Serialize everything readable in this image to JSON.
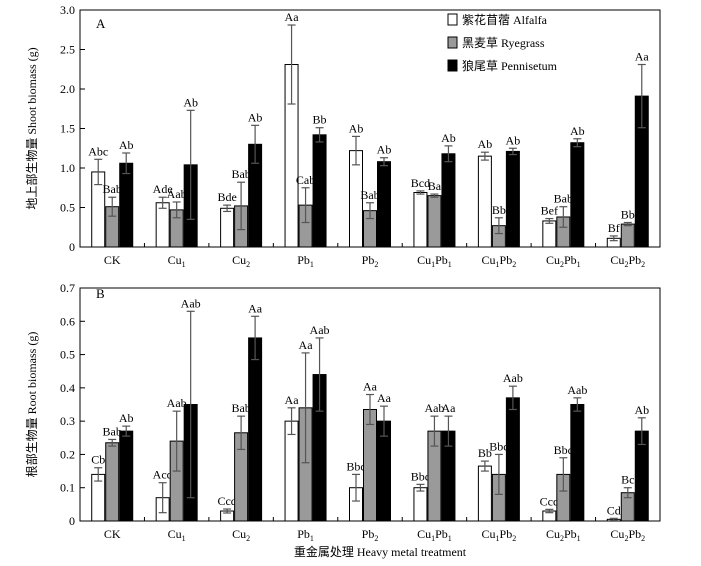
{
  "chart_data": [
    {
      "type": "bar",
      "panel_label": "A",
      "ylabel": "地上部生物量 Shoot biomass (g)",
      "xlabel": "",
      "ylim": [
        0,
        3.0
      ],
      "yticks": [
        "0",
        "0.5",
        "1.0",
        "1.5",
        "2.0",
        "2.5",
        "3.0"
      ],
      "ytick_values": [
        0,
        0.5,
        1.0,
        1.5,
        2.0,
        2.5,
        3.0
      ],
      "categories": [
        {
          "base": "CK"
        },
        {
          "base": "Cu",
          "sub": "1"
        },
        {
          "base": "Cu",
          "sub": "2"
        },
        {
          "base": "Pb",
          "sub": "1"
        },
        {
          "base": "Pb",
          "sub": "2"
        },
        {
          "base": "Cu",
          "sub": "1",
          "base2": "Pb",
          "sub2": "1"
        },
        {
          "base": "Cu",
          "sub": "1",
          "base2": "Pb",
          "sub2": "2"
        },
        {
          "base": "Cu",
          "sub": "2",
          "base2": "Pb",
          "sub2": "1"
        },
        {
          "base": "Cu",
          "sub": "2",
          "base2": "Pb",
          "sub2": "2"
        }
      ],
      "legend": {
        "position": "top-right"
      },
      "grid": false,
      "series": [
        {
          "name": "紫花苜蓿 Alfalfa",
          "color": "#ffffff",
          "values": [
            0.95,
            0.56,
            0.49,
            2.31,
            1.22,
            0.69,
            1.15,
            0.33,
            0.11
          ],
          "errors": [
            0.16,
            0.07,
            0.04,
            0.5,
            0.18,
            0.02,
            0.05,
            0.03,
            0.03
          ],
          "labels": [
            "Abc",
            "Ade",
            "Bde",
            "Aa",
            "Ab",
            "Bcd",
            "Ab",
            "Bef",
            "Bf"
          ]
        },
        {
          "name": "黑麦草 Ryegrass",
          "color": "#9a9a9a",
          "values": [
            0.51,
            0.47,
            0.52,
            0.53,
            0.46,
            0.65,
            0.27,
            0.38,
            0.29
          ],
          "errors": [
            0.12,
            0.1,
            0.3,
            0.22,
            0.1,
            0.02,
            0.1,
            0.13,
            0.02
          ],
          "labels": [
            "Bab",
            "Aab",
            "Bab",
            "Cab",
            "Bab",
            "Ba",
            "Bb",
            "Bab",
            "Bb"
          ]
        },
        {
          "name": "狼尾草 Pennisetum",
          "color": "#000000",
          "values": [
            1.06,
            1.04,
            1.3,
            1.42,
            1.08,
            1.18,
            1.21,
            1.32,
            1.91
          ],
          "errors": [
            0.13,
            0.69,
            0.24,
            0.09,
            0.05,
            0.1,
            0.04,
            0.05,
            0.4
          ],
          "labels": [
            "Ab",
            "Ab",
            "Ab",
            "Bb",
            "Ab",
            "Ab",
            "Ab",
            "Ab",
            "Aa"
          ]
        }
      ]
    },
    {
      "type": "bar",
      "panel_label": "B",
      "ylabel": "根部生物量 Root biomass (g)",
      "xlabel": "重金属处理 Heavy metal treatment",
      "ylim": [
        0,
        0.7
      ],
      "yticks": [
        "0",
        "0.1",
        "0.2",
        "0.3",
        "0.4",
        "0.5",
        "0.6",
        "0.7"
      ],
      "ytick_values": [
        0,
        0.1,
        0.2,
        0.3,
        0.4,
        0.5,
        0.6,
        0.7
      ],
      "categories": [
        {
          "base": "CK"
        },
        {
          "base": "Cu",
          "sub": "1"
        },
        {
          "base": "Cu",
          "sub": "2"
        },
        {
          "base": "Pb",
          "sub": "1"
        },
        {
          "base": "Pb",
          "sub": "2"
        },
        {
          "base": "Cu",
          "sub": "1",
          "base2": "Pb",
          "sub2": "1"
        },
        {
          "base": "Cu",
          "sub": "1",
          "base2": "Pb",
          "sub2": "2"
        },
        {
          "base": "Cu",
          "sub": "2",
          "base2": "Pb",
          "sub2": "1"
        },
        {
          "base": "Cu",
          "sub": "2",
          "base2": "Pb",
          "sub2": "2"
        }
      ],
      "grid": false,
      "series": [
        {
          "name": "紫花苜蓿 Alfalfa",
          "color": "#ffffff",
          "values": [
            0.14,
            0.07,
            0.03,
            0.3,
            0.1,
            0.1,
            0.165,
            0.03,
            0.005
          ],
          "errors": [
            0.02,
            0.045,
            0.006,
            0.04,
            0.04,
            0.01,
            0.015,
            0.005,
            0.003
          ],
          "labels": [
            "Cb",
            "Acd",
            "Ccd",
            "Aa",
            "Bbc",
            "Bbc",
            "Bb",
            "Ccd",
            "Cd"
          ]
        },
        {
          "name": "黑麦草 Ryegrass",
          "color": "#9a9a9a",
          "values": [
            0.235,
            0.24,
            0.265,
            0.34,
            0.335,
            0.27,
            0.14,
            0.14,
            0.085
          ],
          "errors": [
            0.01,
            0.09,
            0.05,
            0.165,
            0.045,
            0.045,
            0.06,
            0.05,
            0.015
          ],
          "labels": [
            "Bab",
            "Aab",
            "Bab",
            "Aa",
            "Aa",
            "Aab",
            "Bbc",
            "Bbc",
            "Bc"
          ]
        },
        {
          "name": "狼尾草 Pennisetum",
          "color": "#000000",
          "values": [
            0.27,
            0.35,
            0.55,
            0.44,
            0.3,
            0.27,
            0.37,
            0.35,
            0.27
          ],
          "errors": [
            0.015,
            0.28,
            0.065,
            0.11,
            0.045,
            0.045,
            0.035,
            0.02,
            0.04
          ],
          "labels": [
            "Ab",
            "Aab",
            "Aa",
            "Aab",
            "Aa",
            "Aa",
            "Aab",
            "Aab",
            "Ab"
          ]
        }
      ]
    }
  ]
}
